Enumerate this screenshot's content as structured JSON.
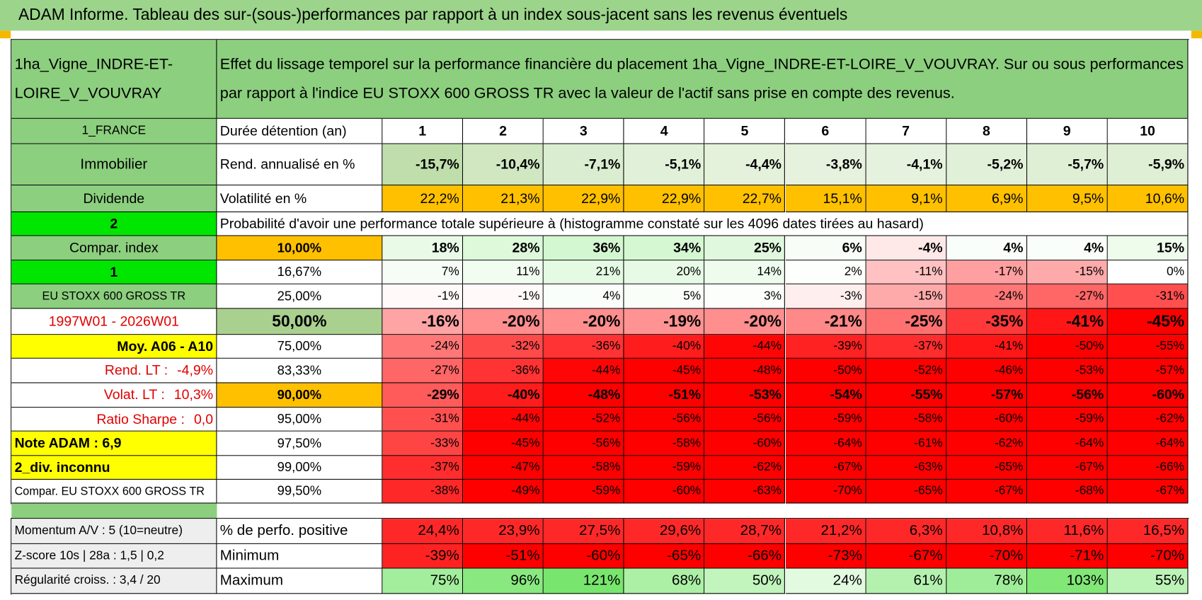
{
  "header": {
    "title": "ADAM Informe. Tableau des sur-(sous-)performances par rapport à un index sous-jacent sans les revenus éventuels"
  },
  "table": {
    "corner": "1ha_Vigne_INDRE-ET-LOIRE_V_VOUVRAY",
    "description": "Effet du lissage temporel sur la performance financière du placement 1ha_Vigne_INDRE-ET-LOIRE_V_VOUVRAY. Sur ou sous performances par rapport à l'indice EU STOXX 600 GROSS TR avec la valeur de l'actif sans prise en compte des revenus.",
    "side": [
      "1_FRANCE",
      "Immobilier",
      "Dividende",
      "2",
      "Compar. index",
      "1",
      "EU STOXX 600 GROSS TR",
      "1997W01 - 2026W01",
      "Moy. A06 - A10",
      {
        "text": "Rend. LT :",
        "value": "-4,9%"
      },
      {
        "text": "Volat. LT :",
        "value": "10,3%"
      },
      {
        "text": "Ratio Sharpe :",
        "value": "0,0"
      },
      "Note ADAM : 6,9",
      "2_div. inconnu",
      "Compar. EU STOXX 600 GROSS TR"
    ],
    "head": {
      "label": "Durée détention (an)",
      "cells": [
        1,
        2,
        3,
        4,
        5,
        6,
        7,
        8,
        9,
        10
      ]
    },
    "stats": [
      {
        "label": "Rend. annualisé en %",
        "cells": [
          "-15,7%",
          "-10,4%",
          "-7,1%",
          "-5,1%",
          "-4,4%",
          "-3,8%",
          "-4,1%",
          "-5,2%",
          "-5,7%",
          "-5,9%"
        ]
      },
      {
        "label": "Volatilité en %",
        "cells": [
          "22,2%",
          "21,3%",
          "22,9%",
          "22,9%",
          "22,7%",
          "15,1%",
          "9,1%",
          "6,9%",
          "9,5%",
          "10,6%"
        ]
      }
    ],
    "probability": "Probabilité d'avoir une performance totale supérieure à (histogramme constaté sur les 4096 dates tirées au hasard)",
    "quantiles": [
      {
        "label": "10,00%",
        "cells": [
          "18%",
          "28%",
          "36%",
          "34%",
          "25%",
          "6%",
          "-4%",
          "4%",
          "4%",
          "15%"
        ]
      },
      {
        "label": "16,67%",
        "cells": [
          "7%",
          "11%",
          "21%",
          "20%",
          "14%",
          "2%",
          "-11%",
          "-17%",
          "-15%",
          "0%"
        ]
      },
      {
        "label": "25,00%",
        "cells": [
          "-1%",
          "-1%",
          "4%",
          "5%",
          "3%",
          "-3%",
          "-15%",
          "-24%",
          "-27%",
          "-31%"
        ]
      },
      {
        "label": "50,00%",
        "cells": [
          "-16%",
          "-20%",
          "-20%",
          "-19%",
          "-20%",
          "-21%",
          "-25%",
          "-35%",
          "-41%",
          "-45%"
        ]
      },
      {
        "label": "75,00%",
        "cells": [
          "-24%",
          "-32%",
          "-36%",
          "-40%",
          "-44%",
          "-39%",
          "-37%",
          "-41%",
          "-50%",
          "-55%"
        ]
      },
      {
        "label": "83,33%",
        "cells": [
          "-27%",
          "-36%",
          "-44%",
          "-45%",
          "-48%",
          "-50%",
          "-52%",
          "-46%",
          "-53%",
          "-57%"
        ]
      },
      {
        "label": "90,00%",
        "cells": [
          "-29%",
          "-40%",
          "-48%",
          "-51%",
          "-53%",
          "-54%",
          "-55%",
          "-57%",
          "-56%",
          "-60%"
        ]
      },
      {
        "label": "95,00%",
        "cells": [
          "-31%",
          "-44%",
          "-52%",
          "-56%",
          "-56%",
          "-59%",
          "-58%",
          "-60%",
          "-59%",
          "-62%"
        ]
      },
      {
        "label": "97,50%",
        "cells": [
          "-33%",
          "-45%",
          "-56%",
          "-58%",
          "-60%",
          "-64%",
          "-61%",
          "-62%",
          "-64%",
          "-64%"
        ]
      },
      {
        "label": "99,00%",
        "cells": [
          "-37%",
          "-47%",
          "-58%",
          "-59%",
          "-62%",
          "-67%",
          "-63%",
          "-65%",
          "-67%",
          "-66%"
        ]
      },
      {
        "label": "99,50%",
        "cells": [
          "-38%",
          "-49%",
          "-59%",
          "-60%",
          "-63%",
          "-70%",
          "-65%",
          "-67%",
          "-68%",
          "-67%"
        ]
      }
    ],
    "summary": [
      {
        "side": "Momentum A/V : 5 (10=neutre)",
        "label": "% de perfo. positive",
        "cells": [
          "24,4%",
          "23,9%",
          "27,5%",
          "29,6%",
          "28,7%",
          "21,2%",
          "6,3%",
          "10,8%",
          "11,6%",
          "16,5%"
        ]
      },
      {
        "side": "Z-score 10s | 28a : 1,5 | 0,2",
        "label": "Minimum",
        "cells": [
          "-39%",
          "-51%",
          "-60%",
          "-65%",
          "-66%",
          "-73%",
          "-67%",
          "-70%",
          "-71%",
          "-70%"
        ]
      },
      {
        "side": "Régularité croiss. : 3,4 / 20",
        "label": "Maximum",
        "cells": [
          "75%",
          "96%",
          "121%",
          "68%",
          "50%",
          "24%",
          "61%",
          "78%",
          "103%",
          "55%"
        ]
      }
    ]
  }
}
